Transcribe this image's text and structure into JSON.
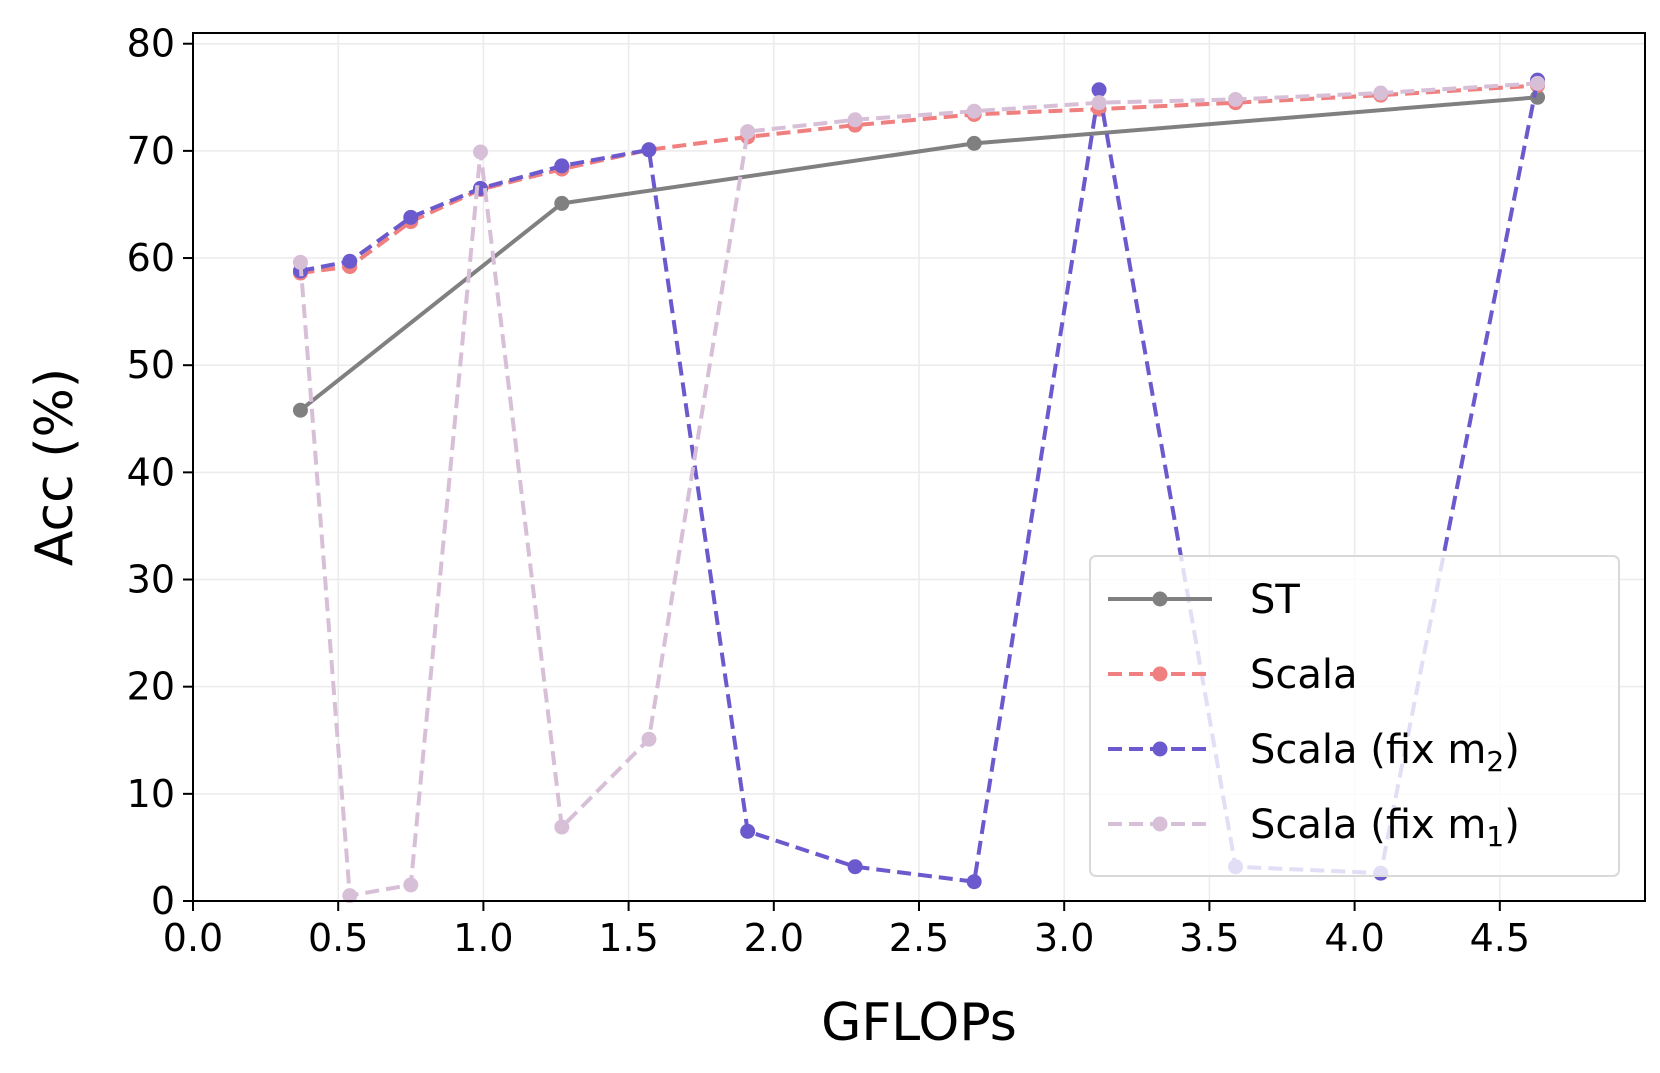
{
  "chart_data": {
    "type": "line",
    "title": "",
    "xlabel": "GFLOPs",
    "ylabel": "Acc (%)",
    "xlim": [
      0.0,
      5.0
    ],
    "ylim": [
      0,
      81
    ],
    "grid": true,
    "legend_position": "lower-right",
    "x_ticks": [
      "0.0",
      "0.5",
      "1.0",
      "1.5",
      "2.0",
      "2.5",
      "3.0",
      "3.5",
      "4.0",
      "4.5"
    ],
    "y_ticks": [
      "0",
      "10",
      "20",
      "30",
      "40",
      "50",
      "60",
      "70",
      "80"
    ],
    "series": [
      {
        "name": "ST",
        "color": "#808080",
        "dashed": false,
        "x": [
          0.37,
          1.27,
          2.69,
          4.63
        ],
        "values": [
          45.8,
          65.1,
          70.7,
          75.0
        ]
      },
      {
        "name": "Scala",
        "color": "#f07f7f",
        "dashed": true,
        "x": [
          0.37,
          0.54,
          0.75,
          0.99,
          1.27,
          1.57,
          1.91,
          2.28,
          2.69,
          3.12,
          3.59,
          4.09,
          4.63
        ],
        "values": [
          58.6,
          59.2,
          63.4,
          66.4,
          68.3,
          70.1,
          71.3,
          72.4,
          73.4,
          73.9,
          74.5,
          75.2,
          76.1
        ]
      },
      {
        "name": "Scala (fix m2)",
        "label_main": "Scala (fix m",
        "label_sub": "2",
        "label_end": ")",
        "color": "#6a5acd",
        "dashed": true,
        "x": [
          0.37,
          0.54,
          0.75,
          0.99,
          1.27,
          1.57,
          1.91,
          2.28,
          2.69,
          3.12,
          3.59,
          4.09,
          4.63
        ],
        "values": [
          58.8,
          59.7,
          63.8,
          66.5,
          68.6,
          70.1,
          6.5,
          3.2,
          1.8,
          75.7,
          3.2,
          2.6,
          76.6
        ]
      },
      {
        "name": "Scala (fix m1)",
        "label_main": "Scala (fix m",
        "label_sub": "1",
        "label_end": ")",
        "color": "#d8bfd8",
        "dashed": true,
        "x": [
          0.37,
          0.54,
          0.75,
          0.99,
          1.27,
          1.57,
          1.91,
          2.28,
          2.69,
          3.12,
          3.59,
          4.09,
          4.63
        ],
        "values": [
          59.6,
          0.5,
          1.5,
          69.9,
          6.9,
          15.1,
          71.8,
          72.9,
          73.7,
          74.5,
          74.8,
          75.4,
          76.3
        ]
      }
    ]
  }
}
